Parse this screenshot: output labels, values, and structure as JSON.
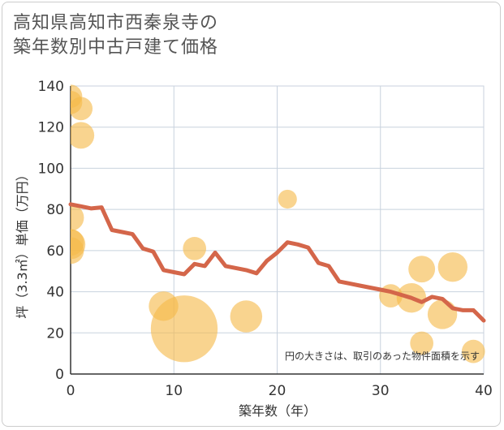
{
  "title_line1": "高知県高知市西秦泉寺の",
  "title_line2": "築年数別中古戸建て価格",
  "chart_data": {
    "type": "scatter",
    "title": "高知県高知市西秦泉寺の築年数別中古戸建て価格",
    "xlabel": "築年数（年）",
    "ylabel": "坪（3.3㎡）単価（万円）",
    "xlim": [
      0,
      40
    ],
    "ylim": [
      0,
      140
    ],
    "xticks": [
      0,
      10,
      20,
      30,
      40
    ],
    "yticks": [
      0,
      20,
      40,
      60,
      80,
      100,
      120,
      140
    ],
    "grid": true,
    "note": "円の大きさは、取引のあった物件面積を示す",
    "points": [
      {
        "x": 0,
        "y": 135,
        "size": 2
      },
      {
        "x": 0,
        "y": 132,
        "size": 2
      },
      {
        "x": 1,
        "y": 129,
        "size": 2
      },
      {
        "x": 1,
        "y": 116,
        "size": 3
      },
      {
        "x": 0,
        "y": 76,
        "size": 3
      },
      {
        "x": 0,
        "y": 64,
        "size": 3
      },
      {
        "x": 0,
        "y": 63,
        "size": 4
      },
      {
        "x": 0,
        "y": 60,
        "size": 3
      },
      {
        "x": 9,
        "y": 33,
        "size": 4
      },
      {
        "x": 11,
        "y": 22,
        "size": 30
      },
      {
        "x": 12,
        "y": 61,
        "size": 2
      },
      {
        "x": 17,
        "y": 28,
        "size": 5
      },
      {
        "x": 21,
        "y": 85,
        "size": 1
      },
      {
        "x": 31,
        "y": 38,
        "size": 2
      },
      {
        "x": 33,
        "y": 37,
        "size": 4
      },
      {
        "x": 34,
        "y": 51,
        "size": 3
      },
      {
        "x": 34,
        "y": 15,
        "size": 2
      },
      {
        "x": 36,
        "y": 29,
        "size": 4
      },
      {
        "x": 37,
        "y": 52,
        "size": 4
      },
      {
        "x": 39,
        "y": 11,
        "size": 2
      }
    ],
    "trend": {
      "name": "trend",
      "x": [
        0,
        1,
        2,
        3,
        4,
        5,
        6,
        7,
        8,
        9,
        10,
        11,
        12,
        13,
        14,
        15,
        16,
        17,
        18,
        19,
        20,
        21,
        22,
        23,
        24,
        25,
        26,
        27,
        28,
        29,
        30,
        31,
        32,
        33,
        34,
        35,
        36,
        37,
        38,
        39,
        40
      ],
      "y": [
        82.5,
        81.5,
        80.5,
        81,
        70,
        69,
        68,
        61,
        59.5,
        50.5,
        49.5,
        48.5,
        53.5,
        52.5,
        59,
        52.5,
        51.5,
        50.5,
        49,
        55,
        59,
        64,
        63,
        61.5,
        54,
        52.5,
        45,
        44,
        43,
        42,
        41,
        40,
        38.5,
        37,
        35,
        37.5,
        36.5,
        32,
        31,
        31,
        26
      ]
    }
  },
  "colors": {
    "point": "#f5b94a",
    "trend": "#d4664a",
    "grid": "#c8d2de",
    "axis": "#333333"
  }
}
